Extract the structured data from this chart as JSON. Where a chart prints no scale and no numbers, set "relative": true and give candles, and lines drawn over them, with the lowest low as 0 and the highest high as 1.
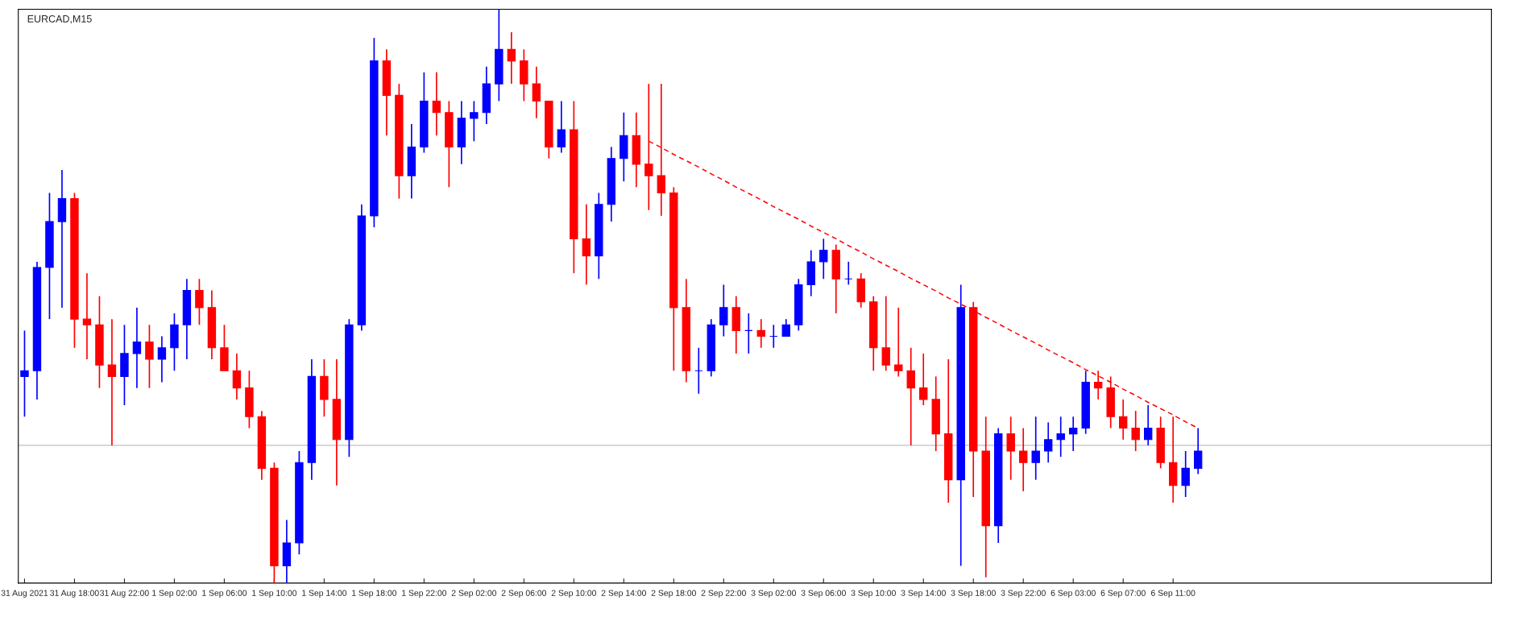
{
  "chart_data": {
    "type": "candlestick",
    "title": "EURCAD,M15",
    "relative": true,
    "grid": false,
    "legend": false,
    "categories": [
      "31 Aug 2021",
      null,
      null,
      null,
      "31 Aug 18:00",
      null,
      null,
      null,
      "31 Aug 22:00",
      null,
      null,
      null,
      "1 Sep 02:00",
      null,
      null,
      null,
      "1 Sep 06:00",
      null,
      null,
      null,
      "1 Sep 10:00",
      null,
      null,
      null,
      "1 Sep 14:00",
      null,
      null,
      null,
      "1 Sep 18:00",
      null,
      null,
      null,
      "1 Sep 22:00",
      null,
      null,
      null,
      "2 Sep 02:00",
      null,
      null,
      null,
      "2 Sep 06:00",
      null,
      null,
      null,
      "2 Sep 10:00",
      null,
      null,
      null,
      "2 Sep 14:00",
      null,
      null,
      null,
      "2 Sep 18:00",
      null,
      null,
      null,
      "2 Sep 22:00",
      null,
      null,
      null,
      "3 Sep 02:00",
      null,
      null,
      null,
      "3 Sep 06:00",
      null,
      null,
      null,
      "3 Sep 10:00",
      null,
      null,
      null,
      "3 Sep 14:00",
      null,
      null,
      null,
      "3 Sep 18:00",
      null,
      null,
      null,
      "3 Sep 22:00",
      null,
      null,
      null,
      "6 Sep 03:00",
      null,
      null,
      null,
      "6 Sep 07:00",
      null,
      null,
      null,
      "6 Sep 11:00",
      null,
      null,
      null,
      null,
      null,
      null,
      null,
      null,
      null,
      null,
      null,
      null,
      null,
      null,
      null,
      null,
      null,
      null,
      null,
      null,
      null,
      null,
      null,
      null,
      null
    ],
    "ohlc": [
      [
        0.36,
        0.44,
        0.29,
        0.37
      ],
      [
        0.37,
        0.56,
        0.32,
        0.55
      ],
      [
        0.55,
        0.68,
        0.46,
        0.63
      ],
      [
        0.63,
        0.72,
        0.48,
        0.67
      ],
      [
        0.67,
        0.68,
        0.41,
        0.46
      ],
      [
        0.46,
        0.54,
        0.39,
        0.45
      ],
      [
        0.45,
        0.5,
        0.34,
        0.38
      ],
      [
        0.38,
        0.46,
        0.24,
        0.36
      ],
      [
        0.36,
        0.45,
        0.31,
        0.4
      ],
      [
        0.4,
        0.48,
        0.34,
        0.42
      ],
      [
        0.42,
        0.45,
        0.34,
        0.39
      ],
      [
        0.39,
        0.43,
        0.35,
        0.41
      ],
      [
        0.41,
        0.47,
        0.37,
        0.45
      ],
      [
        0.45,
        0.53,
        0.39,
        0.51
      ],
      [
        0.51,
        0.53,
        0.45,
        0.48
      ],
      [
        0.48,
        0.51,
        0.39,
        0.41
      ],
      [
        0.41,
        0.45,
        0.37,
        0.37
      ],
      [
        0.37,
        0.4,
        0.32,
        0.34
      ],
      [
        0.34,
        0.37,
        0.27,
        0.29
      ],
      [
        0.29,
        0.3,
        0.18,
        0.2
      ],
      [
        0.2,
        0.21,
        0.0,
        0.03
      ],
      [
        0.03,
        0.11,
        0.0,
        0.07
      ],
      [
        0.07,
        0.23,
        0.05,
        0.21
      ],
      [
        0.21,
        0.39,
        0.18,
        0.36
      ],
      [
        0.36,
        0.39,
        0.29,
        0.32
      ],
      [
        0.32,
        0.39,
        0.17,
        0.25
      ],
      [
        0.25,
        0.46,
        0.22,
        0.45
      ],
      [
        0.45,
        0.66,
        0.44,
        0.64
      ],
      [
        0.64,
        0.95,
        0.62,
        0.91
      ],
      [
        0.91,
        0.93,
        0.78,
        0.85
      ],
      [
        0.85,
        0.87,
        0.67,
        0.71
      ],
      [
        0.71,
        0.8,
        0.67,
        0.76
      ],
      [
        0.76,
        0.89,
        0.75,
        0.84
      ],
      [
        0.84,
        0.89,
        0.78,
        0.82
      ],
      [
        0.82,
        0.84,
        0.69,
        0.76
      ],
      [
        0.76,
        0.84,
        0.73,
        0.81
      ],
      [
        0.81,
        0.84,
        0.77,
        0.82
      ],
      [
        0.82,
        0.9,
        0.8,
        0.87
      ],
      [
        0.87,
        1.0,
        0.84,
        0.93
      ],
      [
        0.93,
        0.96,
        0.87,
        0.91
      ],
      [
        0.91,
        0.93,
        0.84,
        0.87
      ],
      [
        0.87,
        0.9,
        0.81,
        0.84
      ],
      [
        0.84,
        0.84,
        0.74,
        0.76
      ],
      [
        0.76,
        0.84,
        0.75,
        0.79
      ],
      [
        0.79,
        0.84,
        0.54,
        0.6
      ],
      [
        0.6,
        0.66,
        0.52,
        0.57
      ],
      [
        0.57,
        0.68,
        0.53,
        0.66
      ],
      [
        0.66,
        0.76,
        0.63,
        0.74
      ],
      [
        0.74,
        0.82,
        0.7,
        0.78
      ],
      [
        0.78,
        0.82,
        0.69,
        0.73
      ],
      [
        0.73,
        0.87,
        0.65,
        0.71
      ],
      [
        0.71,
        0.87,
        0.64,
        0.68
      ],
      [
        0.68,
        0.69,
        0.37,
        0.48
      ],
      [
        0.48,
        0.53,
        0.35,
        0.37
      ],
      [
        0.37,
        0.41,
        0.33,
        0.37
      ],
      [
        0.37,
        0.46,
        0.36,
        0.45
      ],
      [
        0.45,
        0.52,
        0.43,
        0.48
      ],
      [
        0.48,
        0.5,
        0.4,
        0.44
      ],
      [
        0.44,
        0.47,
        0.4,
        0.44
      ],
      [
        0.44,
        0.46,
        0.41,
        0.43
      ],
      [
        0.43,
        0.45,
        0.41,
        0.43
      ],
      [
        0.43,
        0.46,
        0.43,
        0.45
      ],
      [
        0.45,
        0.53,
        0.44,
        0.52
      ],
      [
        0.52,
        0.58,
        0.5,
        0.56
      ],
      [
        0.56,
        0.6,
        0.53,
        0.58
      ],
      [
        0.58,
        0.59,
        0.47,
        0.53
      ],
      [
        0.53,
        0.56,
        0.52,
        0.53
      ],
      [
        0.53,
        0.54,
        0.48,
        0.49
      ],
      [
        0.49,
        0.5,
        0.37,
        0.41
      ],
      [
        0.41,
        0.5,
        0.37,
        0.38
      ],
      [
        0.38,
        0.48,
        0.36,
        0.37
      ],
      [
        0.37,
        0.41,
        0.24,
        0.34
      ],
      [
        0.34,
        0.4,
        0.31,
        0.32
      ],
      [
        0.32,
        0.36,
        0.23,
        0.26
      ],
      [
        0.26,
        0.39,
        0.14,
        0.18
      ],
      [
        0.18,
        0.52,
        0.03,
        0.48
      ],
      [
        0.48,
        0.49,
        0.15,
        0.23
      ],
      [
        0.23,
        0.29,
        0.01,
        0.1
      ],
      [
        0.1,
        0.27,
        0.07,
        0.26
      ],
      [
        0.26,
        0.29,
        0.18,
        0.23
      ],
      [
        0.23,
        0.27,
        0.16,
        0.21
      ],
      [
        0.21,
        0.29,
        0.18,
        0.23
      ],
      [
        0.23,
        0.28,
        0.21,
        0.25
      ],
      [
        0.25,
        0.29,
        0.22,
        0.26
      ],
      [
        0.26,
        0.29,
        0.23,
        0.27
      ],
      [
        0.27,
        0.37,
        0.26,
        0.35
      ],
      [
        0.35,
        0.37,
        0.32,
        0.34
      ],
      [
        0.34,
        0.36,
        0.27,
        0.29
      ],
      [
        0.29,
        0.32,
        0.25,
        0.27
      ],
      [
        0.27,
        0.3,
        0.23,
        0.25
      ],
      [
        0.25,
        0.31,
        0.24,
        0.27
      ],
      [
        0.27,
        0.29,
        0.2,
        0.21
      ],
      [
        0.21,
        0.29,
        0.14,
        0.17
      ],
      [
        0.17,
        0.23,
        0.15,
        0.2
      ],
      [
        0.2,
        0.27,
        0.19,
        0.23
      ],
      null,
      null,
      null,
      null,
      null,
      null,
      null,
      null,
      null,
      null,
      null,
      null,
      null,
      null,
      null,
      null,
      null,
      null,
      null,
      null,
      null,
      null,
      null
    ],
    "colors": [
      "#0000ff",
      "#0000ff",
      "#0000ff",
      "#0000ff",
      "#ff0000",
      "#ff0000",
      "#ff0000",
      "#ff0000",
      "#0000ff",
      "#0000ff",
      "#ff0000",
      "#0000ff",
      "#0000ff",
      "#0000ff",
      "#ff0000",
      "#ff0000",
      "#ff0000",
      "#ff0000",
      "#ff0000",
      "#ff0000",
      "#ff0000",
      "#0000ff",
      "#0000ff",
      "#0000ff",
      "#ff0000",
      "#ff0000",
      "#0000ff",
      "#0000ff",
      "#0000ff",
      "#ff0000",
      "#ff0000",
      "#0000ff",
      "#0000ff",
      "#ff0000",
      "#ff0000",
      "#0000ff",
      "#0000ff",
      "#0000ff",
      "#0000ff",
      "#ff0000",
      "#ff0000",
      "#ff0000",
      "#ff0000",
      "#0000ff",
      "#ff0000",
      "#ff0000",
      "#0000ff",
      "#0000ff",
      "#0000ff",
      "#ff0000",
      "#ff0000",
      "#ff0000",
      "#ff0000",
      "#ff0000",
      "#0000ff",
      "#0000ff",
      "#0000ff",
      "#ff0000",
      "#0000ff",
      "#ff0000",
      "#0000ff",
      "#0000ff",
      "#0000ff",
      "#0000ff",
      "#0000ff",
      "#ff0000",
      "#0000ff",
      "#ff0000",
      "#ff0000",
      "#ff0000",
      "#ff0000",
      "#ff0000",
      "#ff0000",
      "#ff0000",
      "#ff0000",
      "#0000ff",
      "#ff0000",
      "#ff0000",
      "#0000ff",
      "#ff0000",
      "#ff0000",
      "#0000ff",
      "#0000ff",
      "#0000ff",
      "#0000ff",
      "#0000ff",
      "#ff0000",
      "#ff0000",
      "#ff0000",
      "#ff0000",
      "#0000ff",
      "#ff0000",
      "#ff0000",
      "#0000ff",
      "#0000ff",
      null,
      null,
      null,
      null,
      null,
      null,
      null,
      null,
      null,
      null,
      null,
      null,
      null,
      null,
      null,
      null,
      null,
      null,
      null,
      null,
      null,
      null,
      null
    ],
    "series": [
      {
        "type": "line",
        "color": "#ff0000",
        "line_style": "dashed",
        "values": [
          null,
          null,
          null,
          null,
          null,
          null,
          null,
          null,
          null,
          null,
          null,
          null,
          null,
          null,
          null,
          null,
          null,
          null,
          null,
          null,
          null,
          null,
          null,
          null,
          null,
          null,
          null,
          null,
          null,
          null,
          null,
          null,
          null,
          null,
          null,
          null,
          null,
          null,
          null,
          null,
          null,
          null,
          null,
          null,
          null,
          null,
          null,
          null,
          null,
          null,
          0.77,
          0.759,
          0.747,
          0.736,
          0.725,
          0.713,
          0.702,
          0.69,
          0.679,
          0.668,
          0.656,
          0.645,
          0.634,
          0.622,
          0.611,
          0.6,
          0.588,
          0.577,
          0.565,
          0.554,
          0.543,
          0.531,
          0.52,
          0.509,
          0.497,
          0.486,
          0.475,
          0.463,
          0.452,
          0.44,
          0.429,
          0.418,
          0.406,
          0.395,
          0.384,
          0.372,
          0.361,
          0.35,
          0.338,
          0.327,
          0.315,
          0.304,
          0.293,
          0.281,
          0.27,
          null,
          null,
          null,
          null,
          null,
          null,
          null,
          null,
          null,
          null,
          null,
          null,
          null,
          null,
          null,
          null,
          null,
          null,
          null,
          null,
          null,
          null,
          null
        ]
      }
    ],
    "ref_lines": [
      {
        "axis": "y",
        "value": 0.24,
        "color": "#c0c0c0",
        "line_style": "solid"
      }
    ]
  }
}
